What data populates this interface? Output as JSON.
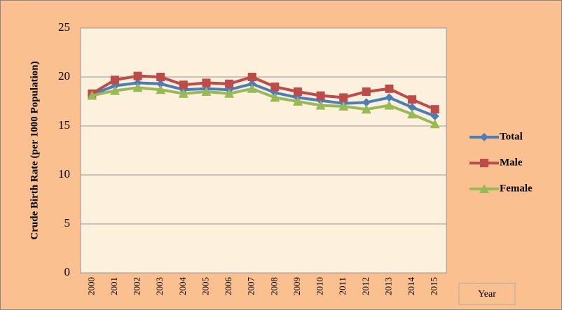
{
  "chart_data": {
    "type": "line",
    "y_label": "Crude Birth Rate (per 1000 Population)",
    "x_label": "Year",
    "categories": [
      "2000",
      "2001",
      "2002",
      "2003",
      "2004",
      "2005",
      "2006",
      "2007",
      "2008",
      "2009",
      "2010",
      "2011",
      "2012",
      "2013",
      "2014",
      "2015"
    ],
    "series": [
      {
        "name": "Total",
        "color": "#4a7ebb",
        "marker": "diamond",
        "values": [
          18.2,
          19.1,
          19.4,
          19.3,
          18.7,
          18.8,
          18.7,
          19.3,
          18.4,
          17.9,
          17.6,
          17.3,
          17.4,
          17.9,
          16.9,
          16.0
        ]
      },
      {
        "name": "Male",
        "color": "#be4b48",
        "marker": "square",
        "values": [
          18.3,
          19.7,
          20.1,
          20.0,
          19.2,
          19.4,
          19.3,
          20.0,
          19.0,
          18.5,
          18.1,
          17.9,
          18.5,
          18.8,
          17.7,
          16.7
        ]
      },
      {
        "name": "Female",
        "color": "#98b954",
        "marker": "triangle",
        "values": [
          18.1,
          18.6,
          18.9,
          18.7,
          18.3,
          18.5,
          18.3,
          18.8,
          17.9,
          17.5,
          17.1,
          17.0,
          16.7,
          17.1,
          16.2,
          15.2
        ]
      }
    ],
    "ylim": [
      0,
      25
    ],
    "yticks": [
      0,
      5,
      10,
      15,
      20,
      25
    ],
    "grid": true,
    "legend": "right"
  }
}
